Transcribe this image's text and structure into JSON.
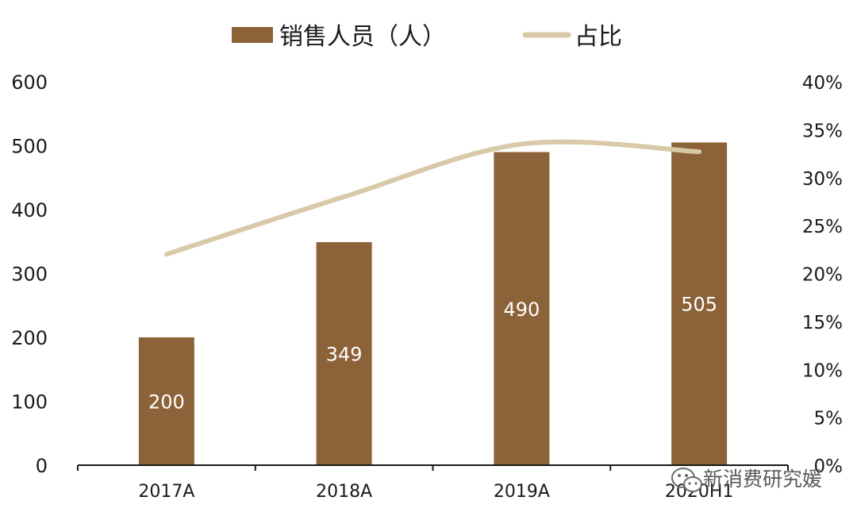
{
  "chart_data": {
    "type": "bar",
    "categories": [
      "2017A",
      "2018A",
      "2019A",
      "2020H1"
    ],
    "series": [
      {
        "name": "销售人员（人）",
        "type": "bar",
        "axis": "left",
        "values": [
          200,
          349,
          490,
          505
        ],
        "data_labels": [
          "200",
          "349",
          "490",
          "505"
        ]
      },
      {
        "name": "占比",
        "type": "line",
        "axis": "right",
        "values": [
          0.22,
          0.28,
          0.335,
          0.327
        ]
      }
    ],
    "y_left": {
      "min": 0,
      "max": 600,
      "ticks": [
        "0",
        "100",
        "200",
        "300",
        "400",
        "500",
        "600"
      ]
    },
    "y_right": {
      "min": 0,
      "max": 0.4,
      "ticks": [
        "0%",
        "5%",
        "10%",
        "15%",
        "20%",
        "25%",
        "30%",
        "35%",
        "40%"
      ]
    },
    "legend": {
      "position": "top"
    },
    "grid": false,
    "colors": {
      "bar": "#8c6239",
      "line": "#d8c9a8",
      "axis": "#1a1a1a"
    }
  },
  "watermark": {
    "text": "新消费研究媛",
    "icon": "wechat-icon"
  }
}
